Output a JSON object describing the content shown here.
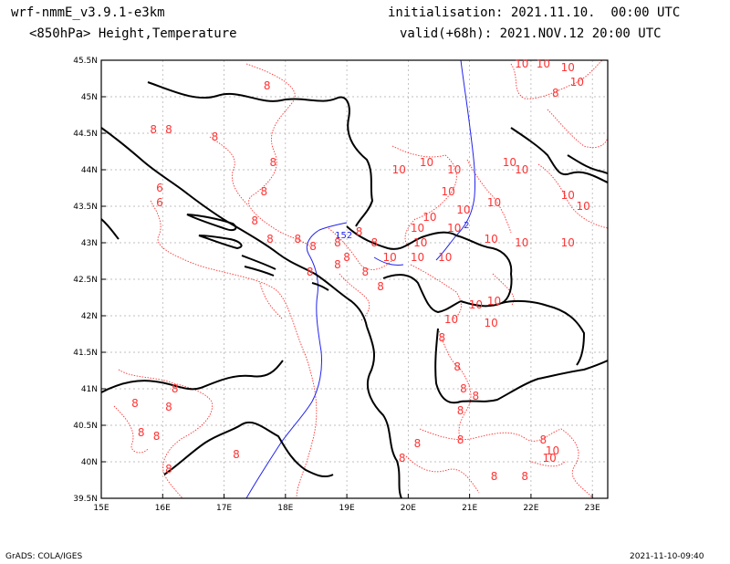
{
  "header": {
    "model": "wrf-nmmE_v3.9.1-e3km",
    "field": "<850hPa> Height,Temperature",
    "init": "initialisation: 2021.11.10.  00:00 UTC",
    "valid": "valid(+68h): 2021.NOV.12 20:00 UTC"
  },
  "footer": {
    "left": "GrADS: COLA/IGES",
    "right": "2021-11-10-09:40"
  },
  "map": {
    "lon_range": [
      15,
      23.25
    ],
    "lat_range": [
      39.5,
      45.5
    ],
    "lon_ticks": [
      "15E",
      "16E",
      "17E",
      "18E",
      "19E",
      "20E",
      "21E",
      "22E",
      "23E"
    ],
    "lat_ticks": [
      "45.5N",
      "45N",
      "44.5N",
      "44N",
      "43.5N",
      "43N",
      "42.5N",
      "42N",
      "41.5N",
      "41N",
      "40.5N",
      "40N",
      "39.5N"
    ],
    "colors": {
      "temperature": "#ff3333",
      "height": "#2222ee",
      "coast": "#000000",
      "grid": "#aaaaaa"
    },
    "height_labels": [
      {
        "text": "152",
        "lon": 18.95,
        "lat": 43.06
      },
      {
        "text": "2",
        "lon": 20.95,
        "lat": 43.2
      }
    ],
    "temp_labels": [
      {
        "t": "8",
        "lon": 17.7,
        "lat": 45.1
      },
      {
        "t": "8",
        "lon": 15.85,
        "lat": 44.5
      },
      {
        "t": "8",
        "lon": 16.1,
        "lat": 44.5
      },
      {
        "t": "8",
        "lon": 16.85,
        "lat": 44.4
      },
      {
        "t": "8",
        "lon": 17.8,
        "lat": 44.05
      },
      {
        "t": "8",
        "lon": 17.65,
        "lat": 43.65
      },
      {
        "t": "6",
        "lon": 15.95,
        "lat": 43.7
      },
      {
        "t": "6",
        "lon": 15.95,
        "lat": 43.5
      },
      {
        "t": "8",
        "lon": 17.5,
        "lat": 43.25
      },
      {
        "t": "8",
        "lon": 17.75,
        "lat": 43.0
      },
      {
        "t": "8",
        "lon": 18.2,
        "lat": 43.0
      },
      {
        "t": "8",
        "lon": 18.45,
        "lat": 42.9
      },
      {
        "t": "8",
        "lon": 18.85,
        "lat": 42.95
      },
      {
        "t": "8",
        "lon": 19.2,
        "lat": 43.1
      },
      {
        "t": "8",
        "lon": 19.45,
        "lat": 42.95
      },
      {
        "t": "8",
        "lon": 19.0,
        "lat": 42.75
      },
      {
        "t": "8",
        "lon": 18.4,
        "lat": 42.55
      },
      {
        "t": "8",
        "lon": 18.85,
        "lat": 42.65
      },
      {
        "t": "8",
        "lon": 19.3,
        "lat": 42.55
      },
      {
        "t": "8",
        "lon": 19.55,
        "lat": 42.35
      },
      {
        "t": "10",
        "lon": 19.7,
        "lat": 42.75
      },
      {
        "t": "10",
        "lon": 20.15,
        "lat": 42.75
      },
      {
        "t": "10",
        "lon": 20.6,
        "lat": 42.75
      },
      {
        "t": "10",
        "lon": 20.2,
        "lat": 42.95
      },
      {
        "t": "10",
        "lon": 20.15,
        "lat": 43.15
      },
      {
        "t": "10",
        "lon": 20.75,
        "lat": 43.15
      },
      {
        "t": "10",
        "lon": 20.9,
        "lat": 43.4
      },
      {
        "t": "10",
        "lon": 20.35,
        "lat": 43.3
      },
      {
        "t": "10",
        "lon": 21.4,
        "lat": 43.5
      },
      {
        "t": "10",
        "lon": 21.35,
        "lat": 43.0
      },
      {
        "t": "10",
        "lon": 21.85,
        "lat": 42.95
      },
      {
        "t": "10",
        "lon": 22.6,
        "lat": 42.95
      },
      {
        "t": "10",
        "lon": 22.85,
        "lat": 43.45
      },
      {
        "t": "10",
        "lon": 22.6,
        "lat": 43.6
      },
      {
        "t": "10",
        "lon": 19.85,
        "lat": 43.95
      },
      {
        "t": "10",
        "lon": 20.3,
        "lat": 44.05
      },
      {
        "t": "10",
        "lon": 20.75,
        "lat": 43.95
      },
      {
        "t": "10",
        "lon": 20.65,
        "lat": 43.65
      },
      {
        "t": "10",
        "lon": 21.65,
        "lat": 44.05
      },
      {
        "t": "10",
        "lon": 21.85,
        "lat": 43.95
      },
      {
        "t": "10",
        "lon": 21.85,
        "lat": 45.4
      },
      {
        "t": "10",
        "lon": 22.2,
        "lat": 45.4
      },
      {
        "t": "10",
        "lon": 22.6,
        "lat": 45.35
      },
      {
        "t": "10",
        "lon": 22.75,
        "lat": 45.15
      },
      {
        "t": "8",
        "lon": 22.4,
        "lat": 45.0
      },
      {
        "t": "10",
        "lon": 21.1,
        "lat": 42.1
      },
      {
        "t": "10",
        "lon": 21.4,
        "lat": 42.15
      },
      {
        "t": "10",
        "lon": 20.7,
        "lat": 41.9
      },
      {
        "t": "10",
        "lon": 21.35,
        "lat": 41.85
      },
      {
        "t": "8",
        "lon": 20.55,
        "lat": 41.65
      },
      {
        "t": "8",
        "lon": 20.8,
        "lat": 41.25
      },
      {
        "t": "8",
        "lon": 20.9,
        "lat": 40.95
      },
      {
        "t": "8",
        "lon": 20.85,
        "lat": 40.65
      },
      {
        "t": "8",
        "lon": 16.2,
        "lat": 40.95
      },
      {
        "t": "8",
        "lon": 16.1,
        "lat": 40.7
      },
      {
        "t": "8",
        "lon": 15.55,
        "lat": 40.75
      },
      {
        "t": "8",
        "lon": 15.65,
        "lat": 40.35
      },
      {
        "t": "8",
        "lon": 15.9,
        "lat": 40.3
      },
      {
        "t": "8",
        "lon": 17.2,
        "lat": 40.05
      },
      {
        "t": "8",
        "lon": 16.1,
        "lat": 39.85
      },
      {
        "t": "8",
        "lon": 20.15,
        "lat": 40.2
      },
      {
        "t": "8",
        "lon": 19.9,
        "lat": 40.0
      },
      {
        "t": "8",
        "lon": 20.85,
        "lat": 40.25
      },
      {
        "t": "8",
        "lon": 21.4,
        "lat": 39.75
      },
      {
        "t": "8",
        "lon": 21.9,
        "lat": 39.75
      },
      {
        "t": "8",
        "lon": 22.2,
        "lat": 40.25
      },
      {
        "t": "10",
        "lon": 22.35,
        "lat": 40.1
      },
      {
        "t": "10",
        "lon": 22.3,
        "lat": 40.0
      },
      {
        "t": "8",
        "lon": 21.1,
        "lat": 40.85
      }
    ]
  }
}
